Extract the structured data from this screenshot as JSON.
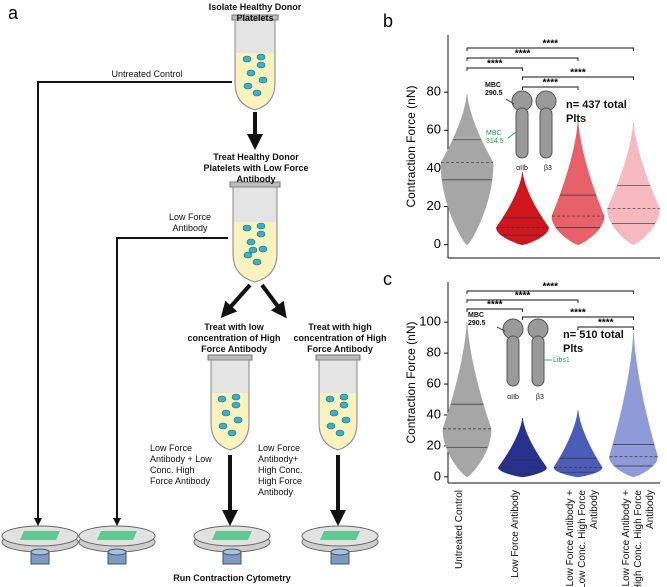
{
  "diagram": {
    "panel": "a",
    "steps": [
      "Isolate Healthy Donor Platelets",
      "Treat Healthy Donor Platelets with Low Force Antibody",
      "Treat with low concentration of High Force Antibody",
      "Treat with high concentration of High Force Antibody"
    ],
    "branches": [
      "Untreated Control",
      "Low Force Antibody",
      "Low Force Antibody + Low Conc. High Force Antibody",
      "Low Force Antibody+ High Conc. High Force Antibody"
    ],
    "footer": "Run Contraction Cytometry"
  },
  "chart_data": [
    {
      "type": "violin",
      "panel": "b",
      "ylabel": "Contraction Force (nN)",
      "ylim": [
        -7,
        110
      ],
      "yticks": [
        0,
        20,
        40,
        60,
        80
      ],
      "groups": [
        {
          "color": "#a6a6a6",
          "min": 0,
          "q1": 34,
          "median": 43,
          "q3": 55,
          "max": 79
        },
        {
          "color": "#d0151d",
          "min": 0,
          "q1": 5,
          "median": 9,
          "q3": 14,
          "max": 38
        },
        {
          "color": "#e8606a",
          "min": 0,
          "q1": 9,
          "median": 15,
          "q3": 26,
          "max": 65
        },
        {
          "color": "#f6b9bf",
          "min": 0,
          "q1": 11,
          "median": 19,
          "q3": 31,
          "max": 64
        }
      ],
      "significance": [
        "****",
        "****",
        "****",
        "****",
        "****"
      ],
      "annotations": {
        "n": "n= 437 total Plts",
        "sites": [
          "MBC 290.5",
          "MBC 314.5"
        ],
        "subunits": [
          "αIIb",
          "β3"
        ]
      }
    },
    {
      "type": "violin",
      "panel": "c",
      "ylabel": "Contraction Force (nN)",
      "ylim": [
        -4,
        126
      ],
      "yticks": [
        0,
        20,
        40,
        60,
        80,
        100
      ],
      "categories": [
        "Untreated Control",
        "Low Force Antibody",
        "Low Force Antibody + Low Conc. High Force Antibody",
        "Low Force Antibody + High Conc. High Force Antibody"
      ],
      "groups": [
        {
          "color": "#a6a6a6",
          "min": 0,
          "q1": 19,
          "median": 31,
          "q3": 47,
          "max": 100
        },
        {
          "color": "#27318f",
          "min": 0,
          "q1": 2,
          "median": 6,
          "q3": 11,
          "max": 38
        },
        {
          "color": "#4c5cba",
          "min": 0,
          "q1": 3,
          "median": 6,
          "q3": 12,
          "max": 43
        },
        {
          "color": "#8f9bd8",
          "min": 0,
          "q1": 7,
          "median": 13,
          "q3": 21,
          "max": 93
        }
      ],
      "significance": [
        "****",
        "****",
        "****",
        "****",
        "****"
      ],
      "annotations": {
        "n": "n= 510 total Plts",
        "sites": [
          "MBC 290.5",
          "Libs1"
        ],
        "subunits": [
          "αIIb",
          "β3"
        ]
      }
    }
  ]
}
